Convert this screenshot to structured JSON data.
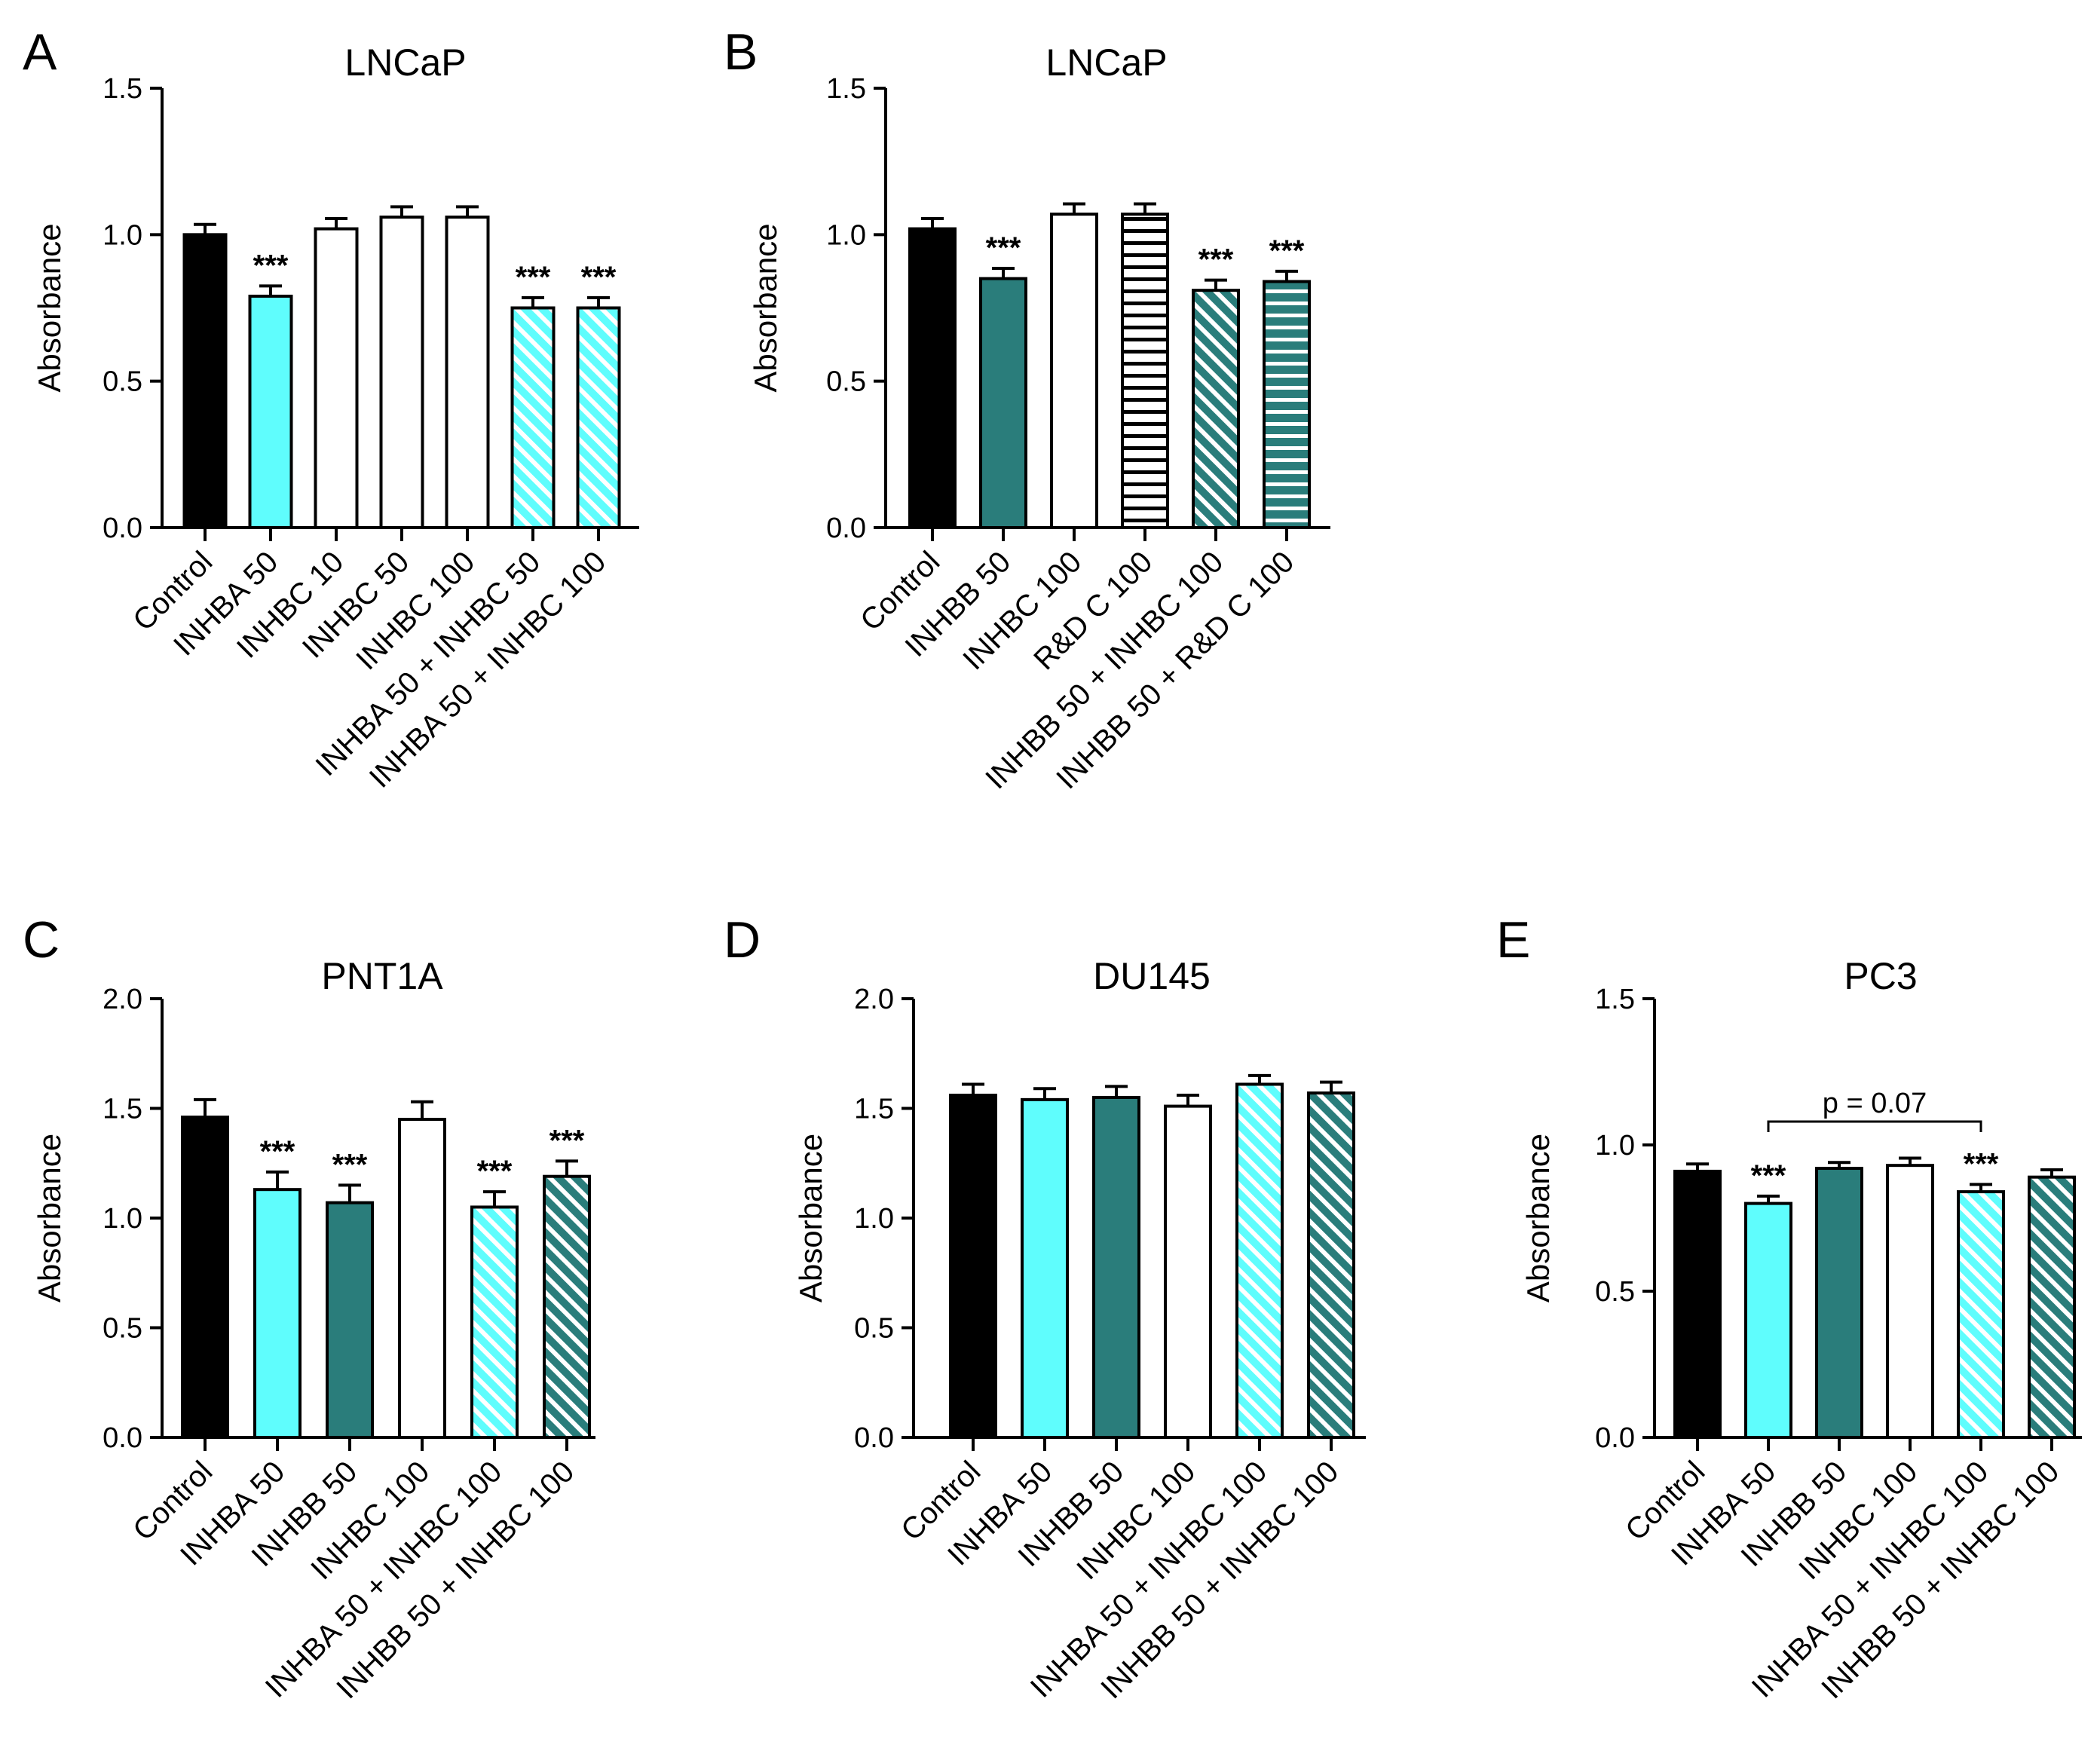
{
  "colors": {
    "control": "#000000",
    "cyan": "#5ffdfd",
    "teal": "#2a7d7b",
    "white": "#ffffff"
  },
  "chart_data": [
    {
      "id": "A",
      "type": "bar",
      "panel_letter": "A",
      "title": "LNCaP",
      "ylabel": "Absorbance",
      "ylim": [
        0,
        1.5
      ],
      "yticks": [
        "0.0",
        "0.5",
        "1.0",
        "1.5"
      ],
      "grid": false,
      "categories": [
        "Control",
        "INHBA 50",
        "INHBC 10",
        "INHBC 50",
        "INHBC 100",
        "INHBA 50 + INHBC 50",
        "INHBA 50 + INHBC 100"
      ],
      "values": [
        1.0,
        0.79,
        1.02,
        1.06,
        1.06,
        0.75,
        0.75
      ],
      "errors": [
        0.035,
        0.035,
        0.035,
        0.035,
        0.035,
        0.035,
        0.035
      ],
      "fills": [
        "control",
        "cyan",
        "white",
        "white",
        "white",
        "cyan",
        "cyan"
      ],
      "patterns": [
        "solid",
        "solid",
        "solid",
        "solid",
        "solid",
        "diagonal",
        "diagonal"
      ],
      "significance": [
        "",
        "***",
        "",
        "",
        "",
        "***",
        "***"
      ]
    },
    {
      "id": "B",
      "type": "bar",
      "panel_letter": "B",
      "title": "LNCaP",
      "ylabel": "Absorbance",
      "ylim": [
        0,
        1.5
      ],
      "yticks": [
        "0.0",
        "0.5",
        "1.0",
        "1.5"
      ],
      "grid": false,
      "categories": [
        "Control",
        "INHBB 50",
        "INHBC 100",
        "R&D C 100",
        "INHBB 50 + INHBC 100",
        "INHBB 50 + R&D C 100"
      ],
      "values": [
        1.02,
        0.85,
        1.07,
        1.07,
        0.81,
        0.84
      ],
      "errors": [
        0.035,
        0.035,
        0.035,
        0.035,
        0.035,
        0.035
      ],
      "fills": [
        "control",
        "teal",
        "white",
        "white",
        "teal",
        "teal"
      ],
      "patterns": [
        "solid",
        "solid",
        "solid",
        "horizontal",
        "diagonal",
        "horizontal"
      ],
      "significance": [
        "",
        "***",
        "",
        "",
        "***",
        "***"
      ]
    },
    {
      "id": "C",
      "type": "bar",
      "panel_letter": "C",
      "title": "PNT1A",
      "ylabel": "Absorbance",
      "ylim": [
        0,
        2.0
      ],
      "yticks": [
        "0.0",
        "0.5",
        "1.0",
        "1.5",
        "2.0"
      ],
      "grid": false,
      "categories": [
        "Control",
        "INHBA 50",
        "INHBB 50",
        "INHBC 100",
        "INHBA 50 + INHBC 100",
        "INHBB 50 + INHBC 100"
      ],
      "values": [
        1.46,
        1.13,
        1.07,
        1.45,
        1.05,
        1.19
      ],
      "errors": [
        0.08,
        0.08,
        0.08,
        0.08,
        0.07,
        0.07
      ],
      "fills": [
        "control",
        "cyan",
        "teal",
        "white",
        "cyan",
        "teal"
      ],
      "patterns": [
        "solid",
        "solid",
        "solid",
        "solid",
        "diagonal",
        "diagonal"
      ],
      "significance": [
        "",
        "***",
        "***",
        "",
        "***",
        "***"
      ]
    },
    {
      "id": "D",
      "type": "bar",
      "panel_letter": "D",
      "title": "DU145",
      "ylabel": "Absorbance",
      "ylim": [
        0,
        2.0
      ],
      "yticks": [
        "0.0",
        "0.5",
        "1.0",
        "1.5",
        "2.0"
      ],
      "grid": false,
      "categories": [
        "Control",
        "INHBA 50",
        "INHBB 50",
        "INHBC 100",
        "INHBA 50 + INHBC 100",
        "INHBB 50 + INHBC 100"
      ],
      "values": [
        1.56,
        1.54,
        1.55,
        1.51,
        1.61,
        1.57
      ],
      "errors": [
        0.05,
        0.05,
        0.05,
        0.05,
        0.04,
        0.05
      ],
      "fills": [
        "control",
        "cyan",
        "teal",
        "white",
        "cyan",
        "teal"
      ],
      "patterns": [
        "solid",
        "solid",
        "solid",
        "solid",
        "diagonal",
        "diagonal"
      ],
      "significance": [
        "",
        "",
        "",
        "",
        "",
        ""
      ]
    },
    {
      "id": "E",
      "type": "bar",
      "panel_letter": "E",
      "title": "PC3",
      "ylabel": "Absorbance",
      "ylim": [
        0,
        1.5
      ],
      "yticks": [
        "0.0",
        "0.5",
        "1.0",
        "1.5"
      ],
      "grid": false,
      "categories": [
        "Control",
        "INHBA 50",
        "INHBB 50",
        "INHBC 100",
        "INHBA 50 + INHBC 100",
        "INHBB 50 + INHBC 100"
      ],
      "values": [
        0.91,
        0.8,
        0.92,
        0.93,
        0.84,
        0.89
      ],
      "errors": [
        0.025,
        0.025,
        0.02,
        0.025,
        0.025,
        0.025
      ],
      "fills": [
        "control",
        "cyan",
        "teal",
        "white",
        "cyan",
        "teal"
      ],
      "patterns": [
        "solid",
        "solid",
        "solid",
        "solid",
        "diagonal",
        "diagonal"
      ],
      "significance": [
        "",
        "***",
        "",
        "",
        "***",
        ""
      ],
      "annotation": {
        "text": "p = 0.07",
        "from": 1,
        "to": 4,
        "y": 1.08
      }
    }
  ]
}
